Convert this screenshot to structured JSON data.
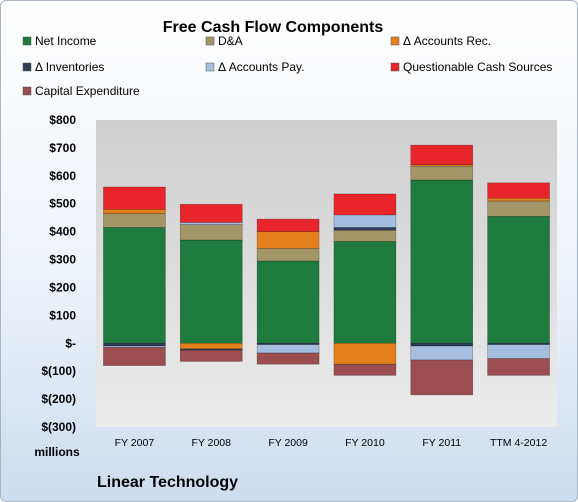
{
  "chart_data": {
    "type": "bar",
    "stacked": true,
    "title": "Free Cash Flow Components",
    "ylabel": "millions",
    "footer": "Linear Technology",
    "categories": [
      "FY 2007",
      "FY 2008",
      "FY 2009",
      "FY 2010",
      "FY 2011",
      "TTM 4-2012"
    ],
    "ylim": [
      -300,
      800
    ],
    "ytick_labels": [
      "$(300)",
      "$(200)",
      "$(100)",
      "$-",
      "$100",
      "$200",
      "$300",
      "$400",
      "$500",
      "$600",
      "$700",
      "$800"
    ],
    "yticks": [
      -300,
      -200,
      -100,
      0,
      100,
      200,
      300,
      400,
      500,
      600,
      700,
      800
    ],
    "grid": false,
    "legend_position": "top",
    "series": [
      {
        "name": "Net Income",
        "color": "#1f7a3e",
        "values": [
          415,
          370,
          295,
          365,
          585,
          455
        ]
      },
      {
        "name": "D&A",
        "color": "#a39567",
        "values": [
          50,
          55,
          45,
          40,
          50,
          55
        ]
      },
      {
        "name": "Δ Accounts Rec.",
        "color": "#e3801c",
        "values": [
          15,
          -20,
          60,
          -75,
          5,
          10
        ]
      },
      {
        "name": "Δ Inventories",
        "color": "#2d3e58",
        "values": [
          -10,
          -5,
          -5,
          10,
          -10,
          -5
        ]
      },
      {
        "name": "Δ Accounts Pay.",
        "color": "#a5bee0",
        "values": [
          -5,
          8,
          -30,
          45,
          -50,
          -50
        ]
      },
      {
        "name": "Questionable Cash Sources",
        "color": "#e8252a",
        "values": [
          80,
          65,
          45,
          75,
          70,
          55
        ]
      },
      {
        "name": "Capital Expenditure",
        "color": "#9b4d4f",
        "values": [
          -65,
          -40,
          -40,
          -40,
          -125,
          -60
        ]
      }
    ]
  }
}
